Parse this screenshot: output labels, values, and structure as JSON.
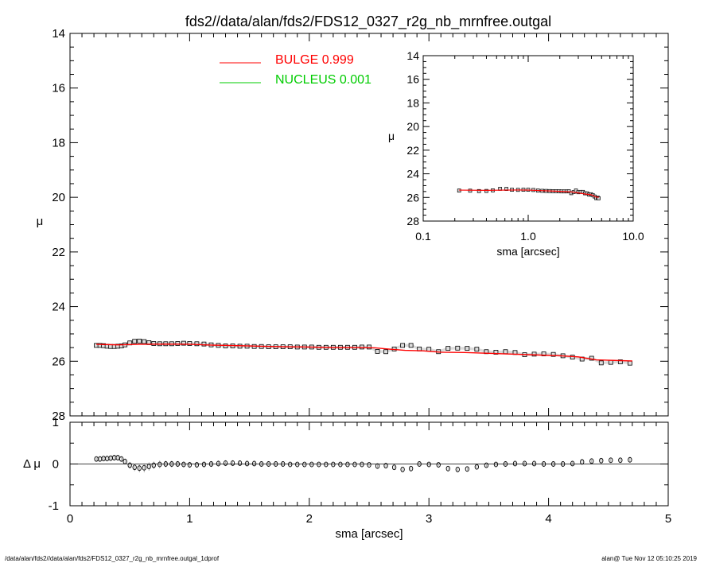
{
  "title": "fds2//data/alan/fds2/FDS12_0327_r2g_nb_mrnfree.outgal",
  "footer_left": "/data/alan/fds2//data/alan/fds2/FDS12_0327_r2g_nb_mrnfree.outgal_1dprof",
  "footer_right": "alan@  Tue Nov 12 05:10:25 2019",
  "colors": {
    "bulge": "#ff0000",
    "nucleus": "#00cc00",
    "data": "#000000",
    "band": "#999999"
  },
  "legend": [
    {
      "label": "BULGE  0.999",
      "color": "#ff0000"
    },
    {
      "label": "NUCLEUS  0.001",
      "color": "#00cc00"
    }
  ],
  "chart_data": [
    {
      "type": "scatter",
      "panel": "main",
      "xlabel": "sma [arcsec]",
      "ylabel": "μ",
      "xlim": [
        0,
        5
      ],
      "ylim": [
        28,
        14
      ],
      "xticks": [
        "0",
        "1",
        "2",
        "3",
        "4",
        "5"
      ],
      "yticks": [
        "14",
        "16",
        "18",
        "20",
        "22",
        "24",
        "26",
        "28"
      ],
      "series": [
        {
          "name": "data",
          "x": [
            0.22,
            0.25,
            0.28,
            0.31,
            0.34,
            0.37,
            0.4,
            0.43,
            0.46,
            0.5,
            0.54,
            0.58,
            0.62,
            0.66,
            0.7,
            0.75,
            0.8,
            0.85,
            0.9,
            0.95,
            1.0,
            1.06,
            1.12,
            1.18,
            1.24,
            1.3,
            1.36,
            1.42,
            1.48,
            1.54,
            1.6,
            1.66,
            1.72,
            1.78,
            1.84,
            1.9,
            1.96,
            2.02,
            2.08,
            2.14,
            2.2,
            2.26,
            2.32,
            2.38,
            2.44,
            2.5,
            2.57,
            2.64,
            2.71,
            2.78,
            2.85,
            2.92,
            3.0,
            3.08,
            3.16,
            3.24,
            3.32,
            3.4,
            3.48,
            3.56,
            3.64,
            3.72,
            3.8,
            3.88,
            3.96,
            4.04,
            4.12,
            4.2,
            4.28,
            4.36,
            4.44,
            4.52,
            4.6,
            4.68
          ],
          "y": [
            25.42,
            25.42,
            25.43,
            25.45,
            25.46,
            25.46,
            25.45,
            25.44,
            25.4,
            25.33,
            25.27,
            25.26,
            25.28,
            25.32,
            25.35,
            25.36,
            25.36,
            25.36,
            25.35,
            25.34,
            25.35,
            25.36,
            25.37,
            25.4,
            25.42,
            25.44,
            25.44,
            25.45,
            25.45,
            25.46,
            25.46,
            25.47,
            25.47,
            25.47,
            25.47,
            25.48,
            25.48,
            25.48,
            25.49,
            25.49,
            25.49,
            25.49,
            25.49,
            25.49,
            25.48,
            25.48,
            25.64,
            25.65,
            25.55,
            25.42,
            25.42,
            25.55,
            25.56,
            25.65,
            25.53,
            25.52,
            25.53,
            25.56,
            25.65,
            25.67,
            25.65,
            25.68,
            25.76,
            25.74,
            25.73,
            25.75,
            25.8,
            25.85,
            25.92,
            25.89,
            26.06,
            26.04,
            26.02,
            26.07
          ]
        },
        {
          "name": "BULGE  0.999",
          "x": [
            0.22,
            0.4,
            0.6,
            0.8,
            1.0,
            1.2,
            1.4,
            1.6,
            1.8,
            2.0,
            2.2,
            2.4,
            2.55,
            2.65,
            2.8,
            2.95,
            3.1,
            3.3,
            3.5,
            3.7,
            3.9,
            4.1,
            4.25,
            4.4,
            4.55,
            4.7
          ],
          "y": [
            25.38,
            25.4,
            25.38,
            25.37,
            25.38,
            25.41,
            25.43,
            25.45,
            25.47,
            25.48,
            25.5,
            25.5,
            25.51,
            25.55,
            25.6,
            25.62,
            25.67,
            25.68,
            25.71,
            25.74,
            25.77,
            25.8,
            25.84,
            25.95,
            25.97,
            25.99
          ]
        },
        {
          "name": "NUCLEUS  0.001",
          "x": [
            0.22,
            4.7
          ],
          "y": [
            28.5,
            28.5
          ]
        }
      ]
    },
    {
      "type": "scatter",
      "panel": "residual",
      "xlabel": "sma [arcsec]",
      "ylabel": "Δ μ",
      "xlim": [
        0,
        5
      ],
      "ylim": [
        -1,
        1
      ],
      "yticks": [
        "-1",
        "0",
        "1"
      ],
      "series": [
        {
          "name": "residual",
          "x": [
            0.22,
            0.25,
            0.28,
            0.31,
            0.34,
            0.37,
            0.4,
            0.43,
            0.46,
            0.5,
            0.54,
            0.58,
            0.62,
            0.66,
            0.7,
            0.75,
            0.8,
            0.85,
            0.9,
            0.95,
            1.0,
            1.06,
            1.12,
            1.18,
            1.24,
            1.3,
            1.36,
            1.42,
            1.48,
            1.54,
            1.6,
            1.66,
            1.72,
            1.78,
            1.84,
            1.9,
            1.96,
            2.02,
            2.08,
            2.14,
            2.2,
            2.26,
            2.32,
            2.38,
            2.44,
            2.5,
            2.57,
            2.64,
            2.71,
            2.78,
            2.85,
            2.92,
            3.0,
            3.08,
            3.16,
            3.24,
            3.32,
            3.4,
            3.48,
            3.56,
            3.64,
            3.72,
            3.8,
            3.88,
            3.96,
            4.04,
            4.12,
            4.2,
            4.28,
            4.36,
            4.44,
            4.52,
            4.6,
            4.68
          ],
          "y": [
            0.12,
            0.12,
            0.13,
            0.13,
            0.14,
            0.15,
            0.15,
            0.12,
            0.06,
            -0.03,
            -0.08,
            -0.1,
            -0.09,
            -0.06,
            -0.03,
            -0.01,
            0.0,
            0.0,
            0.0,
            -0.01,
            -0.02,
            -0.02,
            -0.01,
            0.0,
            0.01,
            0.02,
            0.02,
            0.02,
            0.01,
            0.01,
            0.0,
            0.0,
            0.0,
            0.0,
            -0.01,
            -0.01,
            -0.01,
            -0.01,
            -0.01,
            -0.01,
            -0.01,
            -0.01,
            -0.01,
            -0.01,
            -0.01,
            -0.02,
            -0.05,
            -0.04,
            -0.08,
            -0.13,
            -0.11,
            0.0,
            -0.01,
            -0.02,
            -0.11,
            -0.13,
            -0.12,
            -0.07,
            -0.03,
            -0.01,
            0.0,
            0.01,
            0.01,
            0.01,
            0.0,
            0.0,
            0.0,
            0.01,
            0.05,
            0.07,
            0.08,
            0.09,
            0.09,
            0.1
          ],
          "err": [
            0.04,
            0.04,
            0.04,
            0.04,
            0.05,
            0.05,
            0.05,
            0.06,
            0.07,
            0.08,
            0.09,
            0.1,
            0.11,
            0.1,
            0.09,
            0.09,
            0.08,
            0.08,
            0.07,
            0.07,
            0.07,
            0.07,
            0.07,
            0.07,
            0.07,
            0.07,
            0.07,
            0.06,
            0.05,
            0.05,
            0.04,
            0.04,
            0.04,
            0.04,
            0.03,
            0.03,
            0.03,
            0.03,
            0.03,
            0.03,
            0.03,
            0.03,
            0.03,
            0.03,
            0.03,
            0.03,
            0.04,
            0.04,
            0.04,
            0.04,
            0.04,
            0.04,
            0.04,
            0.04,
            0.04,
            0.04,
            0.04,
            0.04,
            0.04,
            0.04,
            0.04,
            0.04,
            0.04,
            0.04,
            0.04,
            0.04,
            0.04,
            0.05,
            0.05,
            0.05,
            0.05,
            0.05,
            0.05,
            0.05
          ]
        }
      ]
    },
    {
      "type": "scatter",
      "panel": "inset",
      "xlabel": "sma [arcsec]",
      "ylabel": "μ",
      "xscale": "log",
      "xlim": [
        0.1,
        10
      ],
      "ylim": [
        28,
        14
      ],
      "xticks": [
        "0.1",
        "1.0",
        "10.0"
      ],
      "yticks": [
        "14",
        "16",
        "18",
        "20",
        "22",
        "24",
        "26",
        "28"
      ],
      "series": [
        {
          "name": "data",
          "x": [
            0.22,
            0.28,
            0.34,
            0.4,
            0.46,
            0.54,
            0.62,
            0.7,
            0.8,
            0.9,
            1.0,
            1.12,
            1.24,
            1.36,
            1.48,
            1.6,
            1.72,
            1.84,
            1.96,
            2.08,
            2.2,
            2.32,
            2.44,
            2.57,
            2.71,
            2.85,
            3.0,
            3.16,
            3.32,
            3.48,
            3.64,
            3.8,
            3.96,
            4.12,
            4.28,
            4.44,
            4.6,
            4.68
          ],
          "y": [
            25.42,
            25.43,
            25.46,
            25.45,
            25.4,
            25.27,
            25.28,
            25.35,
            25.36,
            25.35,
            25.35,
            25.37,
            25.42,
            25.44,
            25.45,
            25.46,
            25.47,
            25.47,
            25.48,
            25.49,
            25.49,
            25.49,
            25.48,
            25.64,
            25.55,
            25.42,
            25.56,
            25.53,
            25.53,
            25.65,
            25.65,
            25.76,
            25.73,
            25.8,
            25.92,
            26.06,
            26.02,
            26.07
          ]
        },
        {
          "name": "BULGE  0.999",
          "x": [
            0.22,
            0.4,
            0.6,
            0.8,
            1.0,
            1.4,
            1.8,
            2.2,
            2.6,
            3.0,
            3.5,
            4.0,
            4.4,
            4.7
          ],
          "y": [
            25.38,
            25.4,
            25.38,
            25.37,
            25.38,
            25.43,
            25.47,
            25.5,
            25.53,
            25.62,
            25.71,
            25.78,
            25.95,
            25.99
          ]
        }
      ]
    }
  ]
}
